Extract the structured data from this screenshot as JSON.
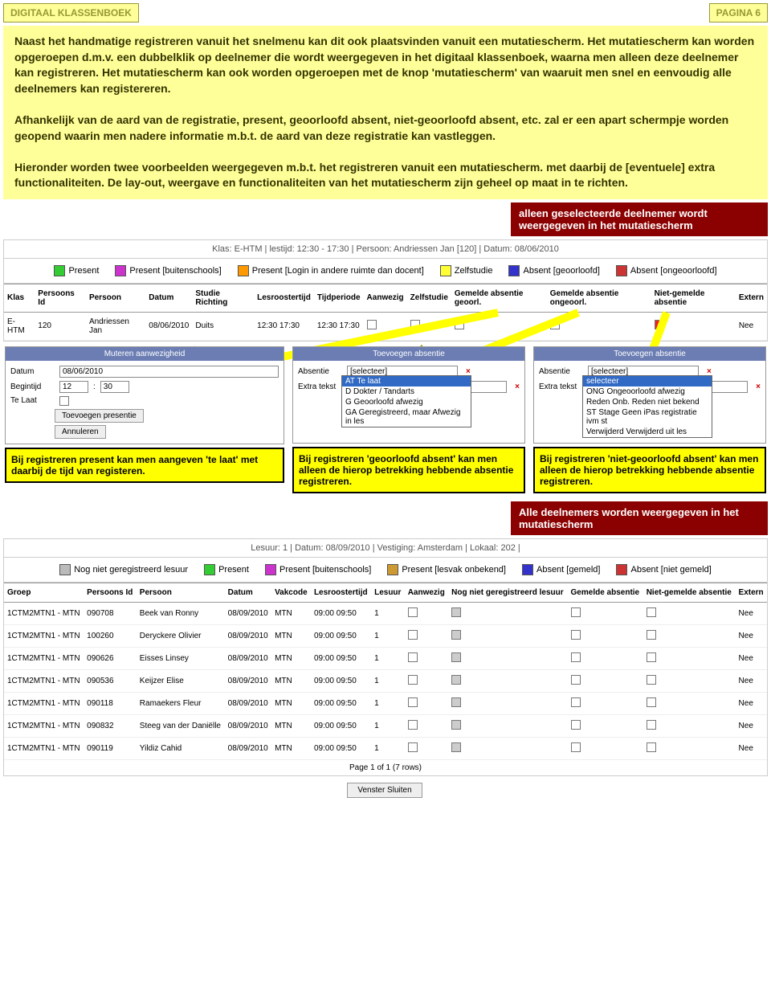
{
  "header": {
    "title": "DIGITAAL KLASSENBOEK",
    "page": "PAGINA 6"
  },
  "intro": "Naast het handmatige registreren vanuit het snelmenu kan dit ook plaatsvinden vanuit een mutatiescherm. Het mutatiescherm kan worden opgeroepen d.m.v. een dubbelklik op deelnemer die wordt weergegeven in het digitaal klassenboek, waarna men alleen deze deelnemer kan registreren. Het mutatiescherm kan ook worden opgeroepen met de knop 'mutatiescherm' van waaruit men snel en eenvoudig alle deelnemers kan registereren.",
  "intro2": "Afhankelijk van de aard van de registratie, present, geoorloofd absent, niet-geoorloofd absent, etc. zal er een apart schermpje worden geopend waarin men nadere informatie m.b.t. de aard van deze registratie kan vastleggen.",
  "intro3": "Hieronder worden twee voorbeelden weergegeven m.b.t. het registreren vanuit een mutatiescherm. met daarbij de [eventuele] extra functionaliteiten. De lay-out, weergave en functionaliteiten van het mutatiescherm zijn geheel op maat in te richten.",
  "callout1": "alleen geselecteerde deelnemer wordt weergegeven in het mutatiescherm",
  "callout2": "Alle deelnemers worden weergegeven in het mutatiescherm",
  "screen1": {
    "info": "Klas: E-HTM  |  lestijd: 12:30 - 17:30  |  Persoon: Andriessen Jan [120]  |  Datum: 08/06/2010",
    "legend": [
      {
        "c": "#33cc33",
        "t": "Present"
      },
      {
        "c": "#cc33cc",
        "t": "Present [buitenschools]"
      },
      {
        "c": "#ff9900",
        "t": "Present [Login in andere ruimte dan docent]"
      },
      {
        "c": "#ffff33",
        "t": "Zelfstudie"
      },
      {
        "c": "#3333cc",
        "t": "Absent [geoorloofd]"
      },
      {
        "c": "#cc3333",
        "t": "Absent [ongeoorloofd]"
      }
    ],
    "cols": [
      "Klas",
      "Persoons Id",
      "Persoon",
      "Datum",
      "Studie Richting",
      "Lesroostertijd",
      "Tijdperiode",
      "Aanwezig",
      "Zelfstudie",
      "Gemelde absentie geoorl.",
      "Gemelde absentie ongeoorl.",
      "Niet-gemelde absentie",
      "Extern"
    ],
    "row": [
      "E-HTM",
      "120",
      "Andriessen Jan",
      "08/06/2010",
      "Duits",
      "12:30 17:30",
      "12:30 17:30",
      "",
      "",
      "",
      "",
      "",
      "Nee"
    ]
  },
  "popup1": {
    "title": "Muteren aanwezigheid",
    "datum_l": "Datum",
    "datum_v": "08/06/2010",
    "begin_l": "Begintijd",
    "begin_h": "12",
    "begin_m": "30",
    "telaat_l": "Te Laat",
    "btn1": "Toevoegen presentie",
    "btn2": "Annuleren",
    "callout": "Bij registreren present kan men aangeven 'te laat' met daarbij de tijd van registeren."
  },
  "popup2": {
    "title": "Toevoegen absentie",
    "abs_l": "Absentie",
    "abs_v": "[selecteer]",
    "extra_l": "Extra tekst",
    "sel": "AT  Te laat",
    "opts": [
      "D  Dokter / Tandarts",
      "G  Geoorloofd afwezig",
      "GA  Geregistreerd, maar Afwezig in les"
    ],
    "callout": "Bij registreren 'geoorloofd absent' kan men alleen de hierop betrekking hebbende absentie registreren."
  },
  "popup3": {
    "title": "Toevoegen absentie",
    "abs_l": "Absentie",
    "abs_v": "[selecteer]",
    "extra_l": "Extra tekst",
    "sel": "selecteer",
    "opts": [
      "ONG Ongeoorloofd afwezig",
      "Reden Onb. Reden niet bekend",
      "ST Stage  Geen iPas registratie ivm st",
      "Verwijderd  Verwijderd uit les"
    ],
    "callout": "Bij registreren 'niet-geoorloofd absent' kan men alleen de hierop betrekking hebbende absentie registreren."
  },
  "screen2": {
    "info": "Lesuur: 1  |  Datum: 08/09/2010  |  Vestiging: Amsterdam  |  Lokaal: 202  |",
    "legend": [
      {
        "c": "#bbbbbb",
        "t": "Nog niet geregistreerd lesuur"
      },
      {
        "c": "#33cc33",
        "t": "Present"
      },
      {
        "c": "#cc33cc",
        "t": "Present [buitenschools]"
      },
      {
        "c": "#cc9933",
        "t": "Present [lesvak onbekend]"
      },
      {
        "c": "#3333cc",
        "t": "Absent [gemeld]"
      },
      {
        "c": "#cc3333",
        "t": "Absent [niet gemeld]"
      }
    ],
    "cols": [
      "Groep",
      "Persoons Id",
      "Persoon",
      "Datum",
      "Vakcode",
      "Lesroostertijd",
      "Lesuur",
      "Aanwezig",
      "Nog niet geregistreerd lesuur",
      "Gemelde absentie",
      "Niet-gemelde absentie",
      "Extern"
    ],
    "rows": [
      [
        "1CTM2MTN1 - MTN",
        "090708",
        "Beek van Ronny",
        "08/09/2010",
        "MTN",
        "09:00 09:50",
        "1",
        "",
        "g",
        "",
        "",
        "Nee"
      ],
      [
        "1CTM2MTN1 - MTN",
        "100260",
        "Deryckere Olivier",
        "08/09/2010",
        "MTN",
        "09:00 09:50",
        "1",
        "",
        "g",
        "",
        "",
        "Nee"
      ],
      [
        "1CTM2MTN1 - MTN",
        "090626",
        "Eisses Linsey",
        "08/09/2010",
        "MTN",
        "09:00 09:50",
        "1",
        "",
        "g",
        "",
        "",
        "Nee"
      ],
      [
        "1CTM2MTN1 - MTN",
        "090536",
        "Keijzer Elise",
        "08/09/2010",
        "MTN",
        "09:00 09:50",
        "1",
        "",
        "g",
        "",
        "",
        "Nee"
      ],
      [
        "1CTM2MTN1 - MTN",
        "090118",
        "Ramaekers Fleur",
        "08/09/2010",
        "MTN",
        "09:00 09:50",
        "1",
        "",
        "g",
        "",
        "",
        "Nee"
      ],
      [
        "1CTM2MTN1 - MTN",
        "090832",
        "Steeg van der Daniëlle",
        "08/09/2010",
        "MTN",
        "09:00 09:50",
        "1",
        "",
        "g",
        "",
        "",
        "Nee"
      ],
      [
        "1CTM2MTN1 - MTN",
        "090119",
        "Yildiz Cahid",
        "08/09/2010",
        "MTN",
        "09:00 09:50",
        "1",
        "",
        "g",
        "",
        "",
        "Nee"
      ]
    ],
    "page": "Page 1 of 1 (7 rows)",
    "close": "Venster Sluiten"
  }
}
